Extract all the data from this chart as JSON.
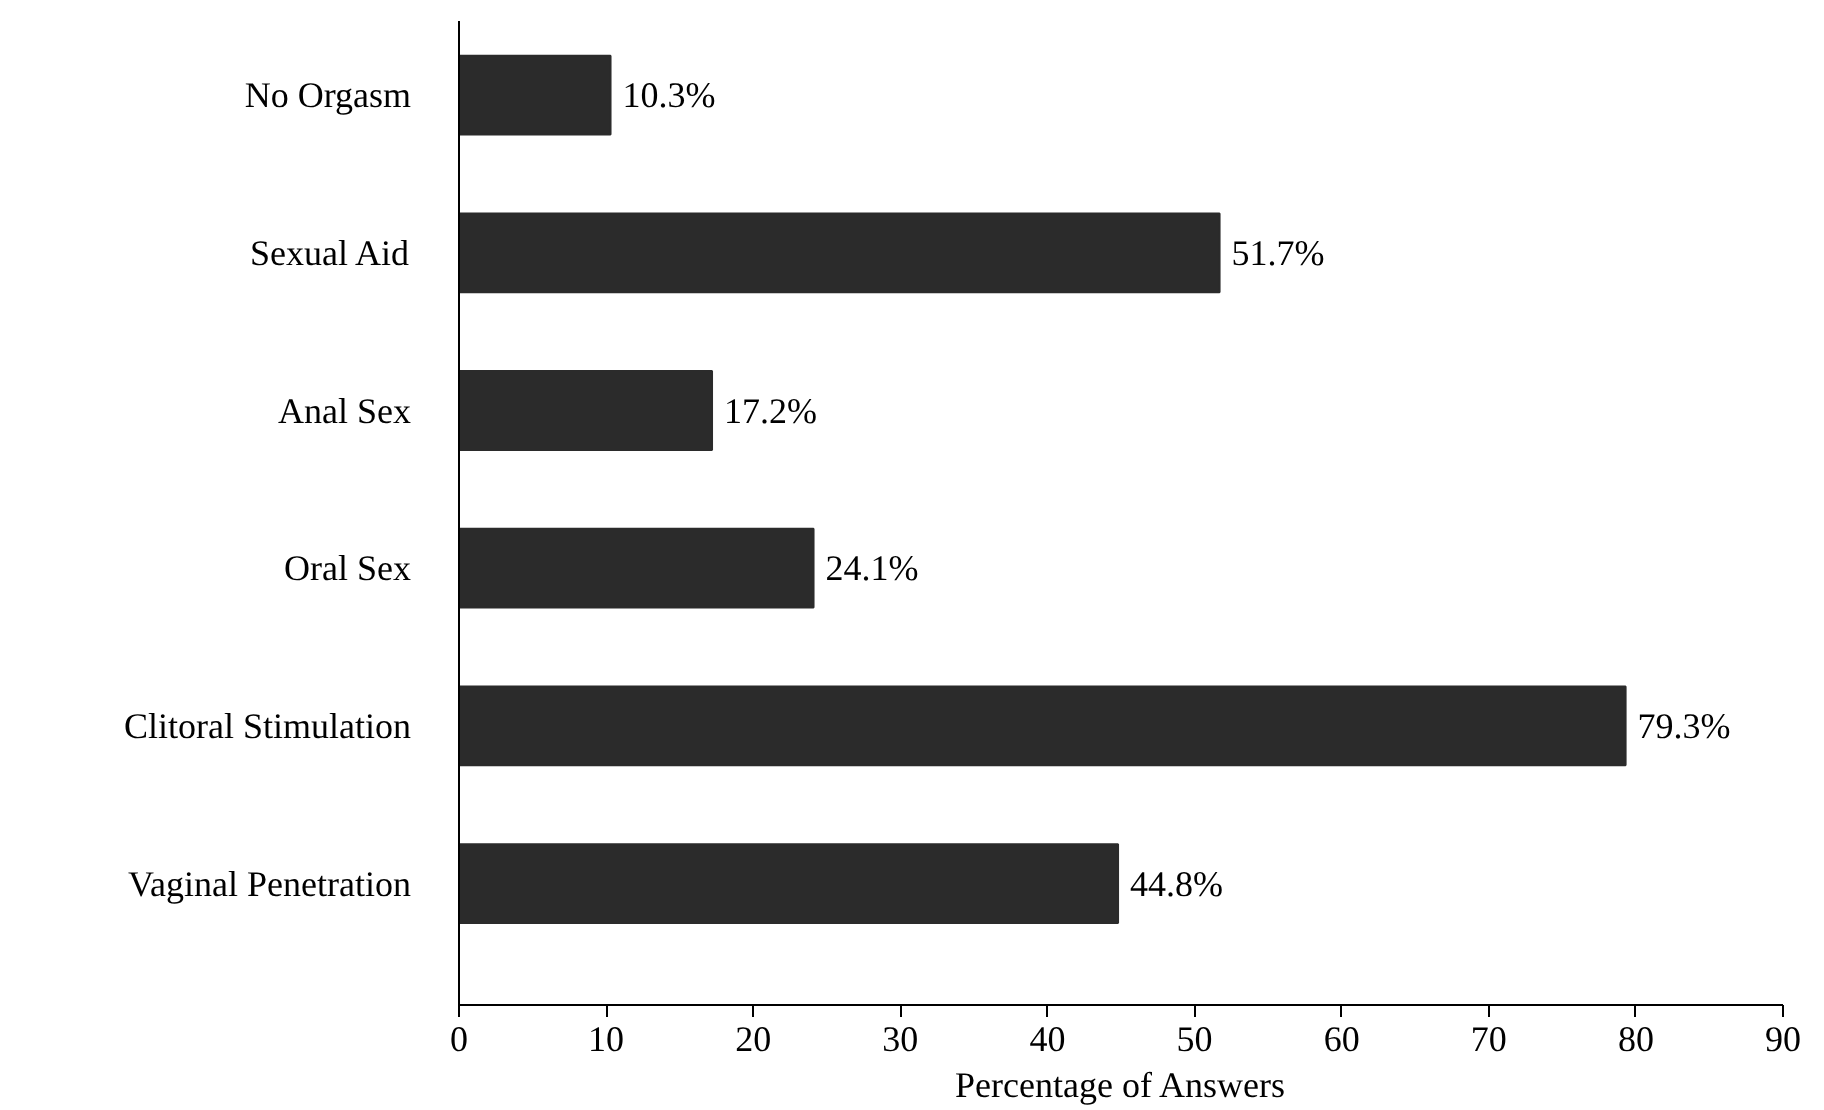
{
  "chart_data": {
    "type": "bar",
    "orientation": "horizontal",
    "xlabel": "Percentage of Answers",
    "categories": [
      "No Orgasm",
      "Sexual Aid",
      "Anal Sex",
      "Oral Sex",
      "Clitoral Stimulation",
      "Vaginal Penetration"
    ],
    "values": [
      10.3,
      51.7,
      17.2,
      24.1,
      79.3,
      44.8
    ],
    "value_labels": [
      "10.3%",
      "51.7%",
      "17.2%",
      "24.1%",
      "79.3%",
      "44.8%"
    ],
    "color": "#2b2b2b",
    "xlim": [
      0,
      90
    ],
    "xticks": [
      0,
      10,
      20,
      30,
      40,
      50,
      60,
      70,
      80,
      90
    ],
    "grid": false
  }
}
